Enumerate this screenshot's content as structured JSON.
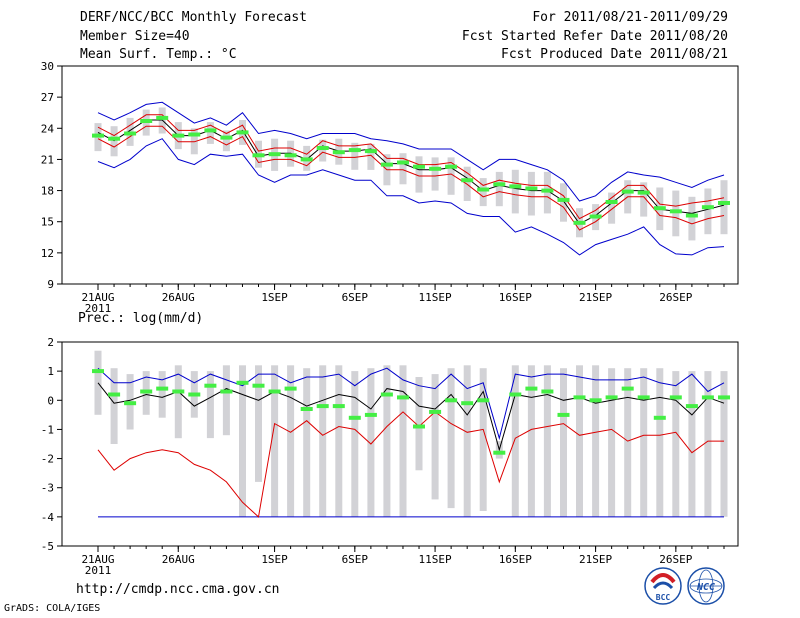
{
  "header": {
    "title": "DERF/NCC/BCC Monthly Forecast",
    "member_size": "Member Size=40",
    "variable": "Mean Surf. Temp.: °C",
    "forecast_period": "For 2011/08/21-2011/09/29",
    "fcst_started": "Fcst Started Refer Date 2011/08/20",
    "fcst_produced": "Fcst Produced Date 2011/08/21"
  },
  "footer": {
    "url": "http://cmdp.ncc.cma.gov.cn",
    "credit": "GrADS: COLA/IGES",
    "logo_bcc": "BCC",
    "logo_ncc": "NCC"
  },
  "colors": {
    "ensemble_range": "#d2d2d6",
    "observed_marker": "#44ee44",
    "mean_line": "#000000",
    "spread_line": "#dd0000",
    "extreme_line": "#0000cc"
  },
  "chart_data": [
    {
      "type": "line",
      "title": "Mean Surf. Temp.: °C",
      "ylabel": "°C",
      "ylim": [
        9,
        30
      ],
      "yticks": [
        9,
        12,
        15,
        18,
        21,
        24,
        27,
        30
      ],
      "xlim": [
        0,
        39
      ],
      "xtick_positions": [
        0,
        5,
        11,
        16,
        21,
        26,
        31,
        36
      ],
      "xtick_labels": [
        "21AUG",
        "26AUG",
        "1SEP",
        "6SEP",
        "11SEP",
        "16SEP",
        "21SEP",
        "26SEP"
      ],
      "year_label": "2011",
      "series": [
        {
          "name": "ensemble mean",
          "values": [
            23.6,
            22.8,
            23.8,
            24.8,
            24.8,
            23.3,
            23.3,
            23.8,
            23.0,
            23.8,
            21.3,
            21.6,
            21.6,
            21.0,
            22.3,
            21.8,
            21.8,
            22.0,
            20.6,
            20.6,
            20.0,
            20.0,
            20.2,
            19.2,
            18.0,
            18.5,
            18.2,
            18.0,
            18.0,
            17.0,
            14.8,
            15.6,
            16.8,
            18.0,
            18.0,
            16.2,
            16.0,
            15.8,
            16.2,
            16.6
          ]
        },
        {
          "name": "spread upper",
          "values": [
            24.1,
            23.3,
            24.3,
            25.3,
            25.3,
            23.8,
            23.8,
            24.3,
            23.5,
            24.3,
            21.8,
            22.1,
            22.1,
            21.5,
            22.8,
            22.3,
            22.3,
            22.5,
            21.1,
            21.1,
            20.5,
            20.5,
            20.7,
            19.7,
            18.5,
            19.0,
            18.7,
            18.5,
            18.5,
            17.5,
            15.3,
            16.1,
            17.3,
            18.5,
            18.5,
            16.7,
            16.5,
            16.8,
            17.0,
            17.3
          ]
        },
        {
          "name": "spread lower",
          "values": [
            23.0,
            22.2,
            23.2,
            24.2,
            24.2,
            22.7,
            22.7,
            23.2,
            22.4,
            23.2,
            20.7,
            21.0,
            21.0,
            20.4,
            21.7,
            21.2,
            21.2,
            21.4,
            20.0,
            20.0,
            19.4,
            19.4,
            19.6,
            18.6,
            17.4,
            17.9,
            17.6,
            17.4,
            17.4,
            16.4,
            14.2,
            15.0,
            16.2,
            17.4,
            17.4,
            15.6,
            15.4,
            14.8,
            15.3,
            15.6
          ]
        },
        {
          "name": "ensemble max",
          "values": [
            25.5,
            24.8,
            25.5,
            26.3,
            26.5,
            25.5,
            24.5,
            25.0,
            24.3,
            25.5,
            23.5,
            23.8,
            23.5,
            23.0,
            23.5,
            23.5,
            23.5,
            23.0,
            22.8,
            22.5,
            22.0,
            22.0,
            22.0,
            21.0,
            20.0,
            21.0,
            21.0,
            20.5,
            20.0,
            19.0,
            17.0,
            17.5,
            18.8,
            19.8,
            19.5,
            19.3,
            18.8,
            18.3,
            19.0,
            19.5
          ]
        },
        {
          "name": "ensemble min",
          "values": [
            20.8,
            20.2,
            21.0,
            22.3,
            23.0,
            21.0,
            20.5,
            21.5,
            21.3,
            21.5,
            19.5,
            18.8,
            19.5,
            19.5,
            20.0,
            19.5,
            19.0,
            19.0,
            17.5,
            17.5,
            16.8,
            17.0,
            16.8,
            15.8,
            15.5,
            15.5,
            14.0,
            14.5,
            13.8,
            13.0,
            11.8,
            12.8,
            13.3,
            13.8,
            14.5,
            12.8,
            11.9,
            11.8,
            12.5,
            12.6
          ]
        },
        {
          "name": "observed",
          "values": [
            23.3,
            23.0,
            23.5,
            24.7,
            25.0,
            23.3,
            23.4,
            23.8,
            23.1,
            23.6,
            21.4,
            21.5,
            21.4,
            21.0,
            22.1,
            21.7,
            21.9,
            21.8,
            20.5,
            20.7,
            20.3,
            20.1,
            20.3,
            19.0,
            18.1,
            18.6,
            18.4,
            18.2,
            18.0,
            17.1,
            14.9,
            15.5,
            16.9,
            17.9,
            17.8,
            16.3,
            16.0,
            15.6,
            16.4,
            16.8
          ]
        },
        {
          "name": "box upper",
          "values": [
            24.5,
            24.2,
            25.0,
            25.8,
            26.0,
            24.6,
            24.0,
            24.6,
            23.8,
            24.8,
            22.8,
            23.0,
            22.8,
            22.3,
            22.9,
            23.0,
            22.6,
            22.5,
            21.5,
            21.6,
            21.3,
            21.2,
            21.2,
            20.3,
            19.2,
            19.8,
            20.0,
            19.8,
            19.8,
            18.7,
            16.3,
            16.7,
            17.8,
            19.0,
            18.8,
            18.3,
            18.0,
            17.4,
            18.2,
            19.0
          ]
        },
        {
          "name": "box lower",
          "values": [
            21.8,
            21.3,
            22.3,
            23.3,
            23.5,
            22.0,
            21.5,
            22.5,
            21.8,
            22.4,
            20.2,
            19.9,
            20.3,
            19.9,
            20.8,
            20.5,
            20.0,
            20.0,
            18.5,
            18.6,
            17.8,
            18.0,
            17.6,
            17.0,
            16.5,
            16.5,
            15.8,
            15.6,
            15.8,
            15.0,
            13.5,
            14.2,
            14.8,
            15.8,
            15.5,
            14.2,
            13.6,
            13.2,
            13.8,
            13.8
          ]
        }
      ]
    },
    {
      "type": "line",
      "title": "Prec.: log(mm/d)",
      "ylabel": "log(mm/d)",
      "ylim": [
        -5,
        2
      ],
      "yticks": [
        -5,
        -4,
        -3,
        -2,
        -1,
        0,
        1,
        2
      ],
      "xlim": [
        0,
        39
      ],
      "xtick_positions": [
        0,
        5,
        11,
        16,
        21,
        26,
        31,
        36
      ],
      "xtick_labels": [
        "21AUG",
        "26AUG",
        "1SEP",
        "6SEP",
        "11SEP",
        "16SEP",
        "21SEP",
        "26SEP"
      ],
      "year_label": "2011",
      "series": [
        {
          "name": "ensemble mean",
          "values": [
            0.6,
            -0.1,
            0.0,
            0.2,
            0.1,
            0.3,
            -0.2,
            0.1,
            0.4,
            0.2,
            0.0,
            0.3,
            0.1,
            -0.2,
            0.0,
            0.2,
            0.1,
            -0.3,
            0.4,
            0.3,
            -0.2,
            -0.3,
            0.2,
            -0.5,
            0.3,
            -1.7,
            0.2,
            0.1,
            0.2,
            0.0,
            0.1,
            -0.1,
            0.0,
            0.1,
            0.0,
            0.1,
            0.0,
            -0.5,
            0.1,
            -0.1
          ]
        },
        {
          "name": "spread lower",
          "values": [
            -1.7,
            -2.4,
            -2.0,
            -1.8,
            -1.7,
            -1.8,
            -2.2,
            -2.4,
            -2.8,
            -3.5,
            -4.0,
            -0.8,
            -1.1,
            -0.7,
            -1.2,
            -0.9,
            -1.0,
            -1.5,
            -0.9,
            -0.4,
            -0.9,
            -0.4,
            -0.8,
            -1.1,
            -1.0,
            -2.8,
            -1.3,
            -1.0,
            -0.9,
            -0.8,
            -1.2,
            -1.1,
            -1.0,
            -1.4,
            -1.2,
            -1.2,
            -1.1,
            -1.8,
            -1.4,
            -1.4
          ]
        },
        {
          "name": "ensemble max",
          "values": [
            1.1,
            0.6,
            0.6,
            0.8,
            0.7,
            0.9,
            0.6,
            0.9,
            0.7,
            0.5,
            0.9,
            0.9,
            0.6,
            0.8,
            0.8,
            0.9,
            0.5,
            0.9,
            1.1,
            0.7,
            0.5,
            0.4,
            0.9,
            0.4,
            0.6,
            -1.3,
            0.9,
            0.8,
            0.9,
            0.9,
            0.8,
            0.7,
            0.7,
            0.7,
            0.8,
            0.6,
            0.5,
            0.9,
            0.3,
            0.6
          ]
        },
        {
          "name": "ensemble min",
          "values": [
            -4.0,
            -4.0,
            -4.0,
            -4.0,
            -4.0,
            -4.0,
            -4.0,
            -4.0,
            -4.0,
            -4.0,
            -4.0,
            -4.0,
            -4.0,
            -4.0,
            -4.0,
            -4.0,
            -4.0,
            -4.0,
            -4.0,
            -4.0,
            -4.0,
            -4.0,
            -4.0,
            -4.0,
            -4.0,
            -4.0,
            -4.0,
            -4.0,
            -4.0,
            -4.0,
            -4.0,
            -4.0,
            -4.0,
            -4.0,
            -4.0,
            -4.0,
            -4.0,
            -4.0,
            -4.0,
            -4.0
          ]
        },
        {
          "name": "observed",
          "values": [
            1.0,
            0.2,
            -0.1,
            0.3,
            0.4,
            0.3,
            0.2,
            0.5,
            0.3,
            0.6,
            0.5,
            0.3,
            0.4,
            -0.3,
            -0.2,
            -0.2,
            -0.6,
            -0.5,
            0.2,
            0.1,
            -0.9,
            -0.4,
            0.0,
            -0.1,
            0.0,
            -1.8,
            0.2,
            0.4,
            0.3,
            -0.5,
            0.1,
            0.0,
            0.1,
            0.4,
            0.1,
            -0.6,
            0.1,
            -0.2,
            0.1,
            0.1
          ]
        },
        {
          "name": "box upper",
          "values": [
            1.7,
            1.1,
            0.9,
            1.0,
            1.0,
            1.2,
            1.0,
            1.0,
            1.2,
            1.2,
            1.2,
            1.2,
            1.2,
            1.1,
            1.2,
            1.2,
            1.0,
            1.1,
            1.2,
            1.2,
            0.8,
            0.9,
            1.1,
            1.2,
            1.1,
            -1.4,
            1.2,
            1.2,
            1.2,
            1.1,
            1.2,
            1.2,
            1.1,
            1.1,
            1.1,
            1.1,
            1.0,
            1.0,
            1.0,
            1.0
          ]
        },
        {
          "name": "box lower",
          "values": [
            -0.5,
            -1.5,
            -1.0,
            -0.5,
            -0.6,
            -1.3,
            -0.6,
            -1.3,
            -1.2,
            -4.0,
            -2.8,
            -4.0,
            -4.0,
            -4.0,
            -4.0,
            -4.0,
            -4.0,
            -4.0,
            -4.0,
            -4.0,
            -2.4,
            -3.4,
            -3.7,
            -4.0,
            -3.8,
            -2.0,
            -4.0,
            -4.0,
            -4.0,
            -4.0,
            -4.0,
            -4.0,
            -4.0,
            -4.0,
            -4.0,
            -4.0,
            -4.0,
            -4.0,
            -4.0,
            -4.0
          ]
        }
      ]
    }
  ]
}
